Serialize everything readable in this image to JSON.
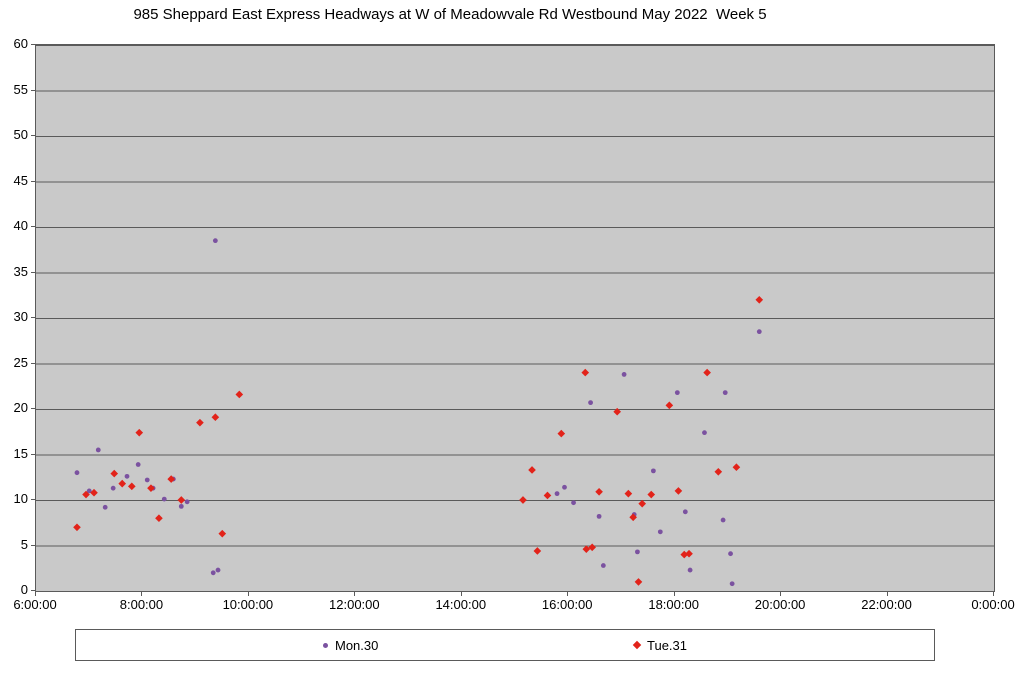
{
  "chart_data": {
    "type": "scatter",
    "title": "985 Sheppard East Express Headways at W of Meadowvale Rd Westbound May 2022  Week 5",
    "xlabel": "",
    "ylabel": "",
    "plot_bg_color": "#c9c9c9",
    "gridline_color": "#5a5a5a",
    "axis_color": "#5a5a5a",
    "grid": "horizontal-only",
    "legend_position": "bottom",
    "x_axis": {
      "min": 6,
      "max": 24,
      "tick_values": [
        6,
        8,
        10,
        12,
        14,
        16,
        18,
        20,
        22,
        24
      ],
      "tick_labels": [
        "6:00:00",
        "8:00:00",
        "10:00:00",
        "12:00:00",
        "14:00:00",
        "16:00:00",
        "18:00:00",
        "20:00:00",
        "22:00:00",
        "0:00:00"
      ]
    },
    "y_axis": {
      "min": 0,
      "max": 60,
      "tick_step": 5,
      "tick_values": [
        60,
        55,
        50,
        45,
        40,
        35,
        30,
        25,
        20,
        15,
        10,
        5,
        0
      ],
      "tick_labels": [
        "60",
        "55",
        "50",
        "45",
        "40",
        "35",
        "30",
        "25",
        "20",
        "15",
        "10",
        "5",
        "0"
      ]
    },
    "series": [
      {
        "name": "Mon.30",
        "marker": "dot",
        "color": "#7b52a0",
        "points": [
          [
            6.77,
            13.0
          ],
          [
            7.0,
            11.0
          ],
          [
            7.17,
            15.5
          ],
          [
            7.3,
            9.2
          ],
          [
            7.45,
            11.3
          ],
          [
            7.71,
            12.6
          ],
          [
            7.92,
            13.9
          ],
          [
            8.09,
            12.2
          ],
          [
            8.2,
            11.3
          ],
          [
            8.41,
            10.1
          ],
          [
            8.58,
            12.3
          ],
          [
            8.73,
            9.3
          ],
          [
            8.84,
            9.8
          ],
          [
            9.33,
            2.0
          ],
          [
            9.37,
            38.5
          ],
          [
            9.42,
            2.3
          ],
          [
            15.79,
            10.7
          ],
          [
            15.93,
            11.4
          ],
          [
            16.1,
            9.7
          ],
          [
            16.42,
            20.7
          ],
          [
            16.58,
            8.2
          ],
          [
            16.66,
            2.8
          ],
          [
            17.05,
            23.8
          ],
          [
            17.24,
            8.4
          ],
          [
            17.3,
            4.3
          ],
          [
            17.6,
            13.2
          ],
          [
            17.73,
            6.5
          ],
          [
            18.05,
            21.8
          ],
          [
            18.2,
            8.7
          ],
          [
            18.29,
            2.3
          ],
          [
            18.56,
            17.4
          ],
          [
            18.91,
            7.8
          ],
          [
            18.95,
            21.8
          ],
          [
            19.05,
            4.1
          ],
          [
            19.08,
            0.8
          ],
          [
            19.59,
            28.5
          ]
        ]
      },
      {
        "name": "Tue.31",
        "marker": "diamond",
        "color": "#e2231a",
        "points": [
          [
            6.77,
            7.0
          ],
          [
            6.94,
            10.6
          ],
          [
            7.09,
            10.8
          ],
          [
            7.47,
            12.9
          ],
          [
            7.62,
            11.8
          ],
          [
            7.8,
            11.5
          ],
          [
            7.94,
            17.4
          ],
          [
            8.16,
            11.3
          ],
          [
            8.31,
            8.0
          ],
          [
            8.54,
            12.3
          ],
          [
            8.73,
            10.0
          ],
          [
            9.08,
            18.5
          ],
          [
            9.37,
            19.1
          ],
          [
            9.5,
            6.3
          ],
          [
            9.82,
            21.6
          ],
          [
            15.15,
            10.0
          ],
          [
            15.32,
            13.3
          ],
          [
            15.42,
            4.4
          ],
          [
            15.61,
            10.5
          ],
          [
            15.87,
            17.3
          ],
          [
            16.32,
            24.0
          ],
          [
            16.34,
            4.6
          ],
          [
            16.45,
            4.8
          ],
          [
            16.58,
            10.9
          ],
          [
            16.92,
            19.7
          ],
          [
            17.13,
            10.7
          ],
          [
            17.22,
            8.1
          ],
          [
            17.32,
            1.0
          ],
          [
            17.39,
            9.6
          ],
          [
            17.56,
            10.6
          ],
          [
            17.9,
            20.4
          ],
          [
            18.07,
            11.0
          ],
          [
            18.18,
            4.0
          ],
          [
            18.27,
            4.1
          ],
          [
            18.61,
            24.0
          ],
          [
            18.82,
            13.1
          ],
          [
            19.16,
            13.6
          ],
          [
            19.59,
            32.0
          ]
        ]
      }
    ]
  }
}
